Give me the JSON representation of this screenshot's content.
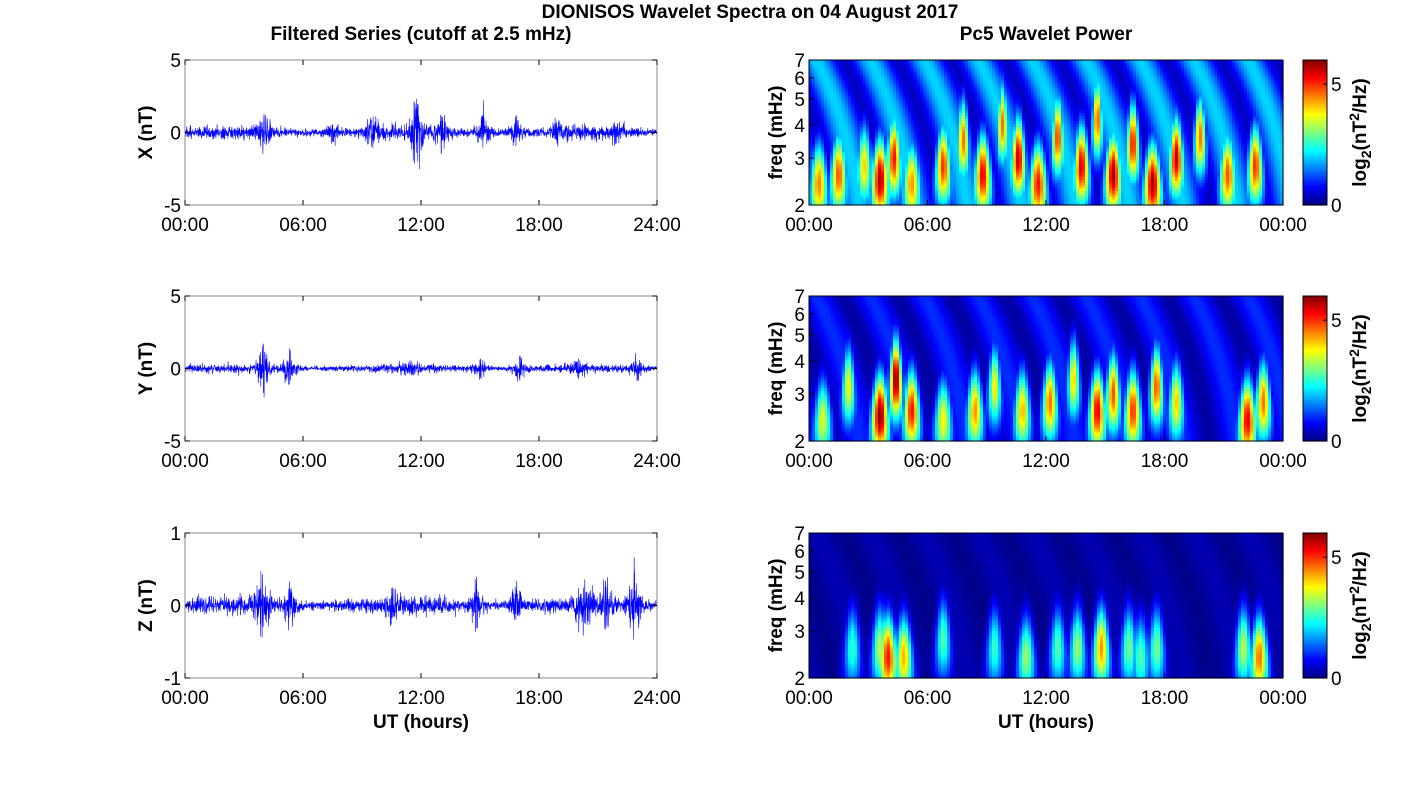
{
  "figure": {
    "title": "DIONISOS Wavelet Spectra on 04 August 2017",
    "left_column_title": "Filtered Series (cutoff at 2.5 mHz)",
    "right_column_title": "Pc5 Wavelet Power",
    "x_axis_label": "UT (hours)"
  },
  "colors": {
    "series_line": "#0000ff",
    "axes": "#000000",
    "colormap": "jet"
  },
  "chart_data": [
    {
      "type": "line",
      "component": "X",
      "ylabel": "X (nT)",
      "ylim": [
        -5,
        5
      ],
      "yticks": [
        -5,
        0,
        5
      ],
      "xlim": [
        0,
        24
      ],
      "xtick_labels": [
        "00:00",
        "06:00",
        "12:00",
        "18:00",
        "24:00"
      ],
      "baseline_amplitude_nT": 0.45,
      "bursts": [
        {
          "t": 4.0,
          "amplitude_nT": 1.5
        },
        {
          "t": 7.5,
          "amplitude_nT": 0.8
        },
        {
          "t": 9.5,
          "amplitude_nT": 1.2
        },
        {
          "t": 11.8,
          "amplitude_nT": 2.6
        },
        {
          "t": 13.0,
          "amplitude_nT": 1.6
        },
        {
          "t": 15.2,
          "amplitude_nT": 2.3
        },
        {
          "t": 16.8,
          "amplitude_nT": 1.3
        },
        {
          "t": 19.0,
          "amplitude_nT": 1.0
        },
        {
          "t": 22.0,
          "amplitude_nT": 0.9
        }
      ]
    },
    {
      "type": "heatmap",
      "component": "X",
      "ylabel": "freq (mHz)",
      "ylim": [
        2,
        7
      ],
      "y_scale": "log",
      "yticks": [
        2,
        3,
        4,
        5,
        6,
        7
      ],
      "xlim": [
        0,
        24
      ],
      "xtick_labels": [
        "00:00",
        "06:00",
        "12:00",
        "18:00",
        "00:00"
      ],
      "colorbar": {
        "label": "log2(nT²/Hz)",
        "range": [
          0,
          6
        ],
        "ticks": [
          0,
          5
        ]
      },
      "background_level": 2.0,
      "hot_spots": [
        {
          "t": 0.5,
          "f": 2.4,
          "level": 4.5
        },
        {
          "t": 1.5,
          "f": 2.6,
          "level": 4.8
        },
        {
          "t": 2.8,
          "f": 2.8,
          "level": 4.0
        },
        {
          "t": 3.6,
          "f": 2.5,
          "level": 5.8
        },
        {
          "t": 4.3,
          "f": 3.0,
          "level": 5.2
        },
        {
          "t": 5.2,
          "f": 2.4,
          "level": 4.4
        },
        {
          "t": 6.8,
          "f": 2.8,
          "level": 5.0
        },
        {
          "t": 7.8,
          "f": 3.5,
          "level": 4.6
        },
        {
          "t": 8.8,
          "f": 2.6,
          "level": 5.4
        },
        {
          "t": 9.8,
          "f": 4.0,
          "level": 4.6
        },
        {
          "t": 10.6,
          "f": 3.0,
          "level": 5.6
        },
        {
          "t": 11.6,
          "f": 2.4,
          "level": 5.2
        },
        {
          "t": 12.6,
          "f": 3.6,
          "level": 5.0
        },
        {
          "t": 13.8,
          "f": 2.8,
          "level": 5.5
        },
        {
          "t": 14.6,
          "f": 4.2,
          "level": 4.8
        },
        {
          "t": 15.4,
          "f": 2.6,
          "level": 5.8
        },
        {
          "t": 16.4,
          "f": 3.4,
          "level": 5.2
        },
        {
          "t": 17.4,
          "f": 2.4,
          "level": 5.8
        },
        {
          "t": 18.6,
          "f": 3.0,
          "level": 5.6
        },
        {
          "t": 19.8,
          "f": 3.6,
          "level": 4.6
        },
        {
          "t": 21.2,
          "f": 2.6,
          "level": 4.8
        },
        {
          "t": 22.6,
          "f": 2.8,
          "level": 5.0
        }
      ]
    },
    {
      "type": "line",
      "component": "Y",
      "ylabel": "Y (nT)",
      "ylim": [
        -5,
        5
      ],
      "yticks": [
        -5,
        0,
        5
      ],
      "xlim": [
        0,
        24
      ],
      "xtick_labels": [
        "00:00",
        "06:00",
        "12:00",
        "18:00",
        "24:00"
      ],
      "baseline_amplitude_nT": 0.3,
      "bursts": [
        {
          "t": 4.0,
          "amplitude_nT": 2.1
        },
        {
          "t": 5.3,
          "amplitude_nT": 1.5
        },
        {
          "t": 11.5,
          "amplitude_nT": 0.6
        },
        {
          "t": 15.0,
          "amplitude_nT": 0.8
        },
        {
          "t": 17.0,
          "amplitude_nT": 0.9
        },
        {
          "t": 20.0,
          "amplitude_nT": 0.6
        },
        {
          "t": 23.0,
          "amplitude_nT": 0.9
        }
      ]
    },
    {
      "type": "heatmap",
      "component": "Y",
      "ylabel": "freq (mHz)",
      "ylim": [
        2,
        7
      ],
      "y_scale": "log",
      "yticks": [
        2,
        3,
        4,
        5,
        6,
        7
      ],
      "xlim": [
        0,
        24
      ],
      "xtick_labels": [
        "00:00",
        "06:00",
        "12:00",
        "18:00",
        "00:00"
      ],
      "colorbar": {
        "label": "log2(nT²/Hz)",
        "range": [
          0,
          6
        ],
        "ticks": [
          0,
          5
        ]
      },
      "background_level": 1.0,
      "hot_spots": [
        {
          "t": 0.7,
          "f": 2.4,
          "level": 3.6
        },
        {
          "t": 2.0,
          "f": 3.2,
          "level": 3.8
        },
        {
          "t": 3.6,
          "f": 2.5,
          "level": 6.0
        },
        {
          "t": 4.4,
          "f": 3.4,
          "level": 6.0
        },
        {
          "t": 5.2,
          "f": 2.6,
          "level": 5.2
        },
        {
          "t": 6.8,
          "f": 2.4,
          "level": 3.8
        },
        {
          "t": 8.4,
          "f": 2.6,
          "level": 4.4
        },
        {
          "t": 9.4,
          "f": 3.2,
          "level": 3.8
        },
        {
          "t": 10.8,
          "f": 2.6,
          "level": 4.2
        },
        {
          "t": 12.2,
          "f": 2.8,
          "level": 4.6
        },
        {
          "t": 13.4,
          "f": 3.4,
          "level": 4.0
        },
        {
          "t": 14.6,
          "f": 2.6,
          "level": 5.4
        },
        {
          "t": 15.4,
          "f": 3.0,
          "level": 4.8
        },
        {
          "t": 16.4,
          "f": 2.6,
          "level": 5.0
        },
        {
          "t": 17.6,
          "f": 3.2,
          "level": 4.8
        },
        {
          "t": 18.6,
          "f": 2.8,
          "level": 4.0
        },
        {
          "t": 22.2,
          "f": 2.4,
          "level": 5.4
        },
        {
          "t": 23.0,
          "f": 2.8,
          "level": 4.6
        }
      ]
    },
    {
      "type": "line",
      "component": "Z",
      "ylabel": "Z (nT)",
      "ylim": [
        -1,
        1
      ],
      "yticks": [
        -1,
        0,
        1
      ],
      "xlim": [
        0,
        24
      ],
      "xtick_labels": [
        "00:00",
        "06:00",
        "12:00",
        "18:00",
        "24:00"
      ],
      "xlabel": "UT (hours)",
      "baseline_amplitude_nT": 0.12,
      "bursts": [
        {
          "t": 3.9,
          "amplitude_nT": 0.6
        },
        {
          "t": 5.3,
          "amplitude_nT": 0.45
        },
        {
          "t": 10.5,
          "amplitude_nT": 0.3
        },
        {
          "t": 14.8,
          "amplitude_nT": 0.4
        },
        {
          "t": 16.8,
          "amplitude_nT": 0.35
        },
        {
          "t": 20.3,
          "amplitude_nT": 0.45
        },
        {
          "t": 21.4,
          "amplitude_nT": 0.35
        },
        {
          "t": 22.8,
          "amplitude_nT": 0.55
        }
      ]
    },
    {
      "type": "heatmap",
      "component": "Z",
      "ylabel": "freq (mHz)",
      "ylim": [
        2,
        7
      ],
      "y_scale": "log",
      "yticks": [
        2,
        3,
        4,
        5,
        6,
        7
      ],
      "xlim": [
        0,
        24
      ],
      "xtick_labels": [
        "00:00",
        "06:00",
        "12:00",
        "18:00",
        "00:00"
      ],
      "xlabel": "UT (hours)",
      "colorbar": {
        "label": "log2(nT²/Hz)",
        "range": [
          0,
          6
        ],
        "ticks": [
          0,
          5
        ]
      },
      "background_level": 0.3,
      "hot_spots": [
        {
          "t": 2.2,
          "f": 2.6,
          "level": 2.6
        },
        {
          "t": 3.6,
          "f": 2.6,
          "level": 3.4
        },
        {
          "t": 4.0,
          "f": 2.4,
          "level": 5.2
        },
        {
          "t": 4.8,
          "f": 2.4,
          "level": 4.2
        },
        {
          "t": 6.8,
          "f": 2.8,
          "level": 2.8
        },
        {
          "t": 9.4,
          "f": 2.6,
          "level": 2.6
        },
        {
          "t": 11.0,
          "f": 2.4,
          "level": 3.2
        },
        {
          "t": 12.6,
          "f": 2.6,
          "level": 2.8
        },
        {
          "t": 13.6,
          "f": 2.6,
          "level": 3.2
        },
        {
          "t": 14.8,
          "f": 2.6,
          "level": 4.4
        },
        {
          "t": 16.2,
          "f": 2.6,
          "level": 3.0
        },
        {
          "t": 16.8,
          "f": 2.4,
          "level": 2.8
        },
        {
          "t": 17.6,
          "f": 2.6,
          "level": 3.0
        },
        {
          "t": 22.0,
          "f": 2.6,
          "level": 3.4
        },
        {
          "t": 22.8,
          "f": 2.4,
          "level": 4.6
        }
      ]
    }
  ]
}
